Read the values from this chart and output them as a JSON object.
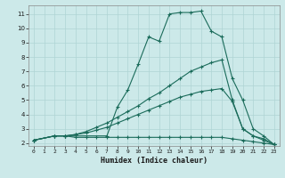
{
  "xlabel": "Humidex (Indice chaleur)",
  "bg_color": "#cce9e9",
  "grid_color": "#afd4d4",
  "line_color": "#1a6b5a",
  "xlim": [
    -0.5,
    23.5
  ],
  "ylim": [
    1.8,
    11.6
  ],
  "xticks": [
    0,
    1,
    2,
    3,
    4,
    5,
    6,
    7,
    8,
    9,
    10,
    11,
    12,
    13,
    14,
    15,
    16,
    17,
    18,
    19,
    20,
    21,
    22,
    23
  ],
  "yticks": [
    2,
    3,
    4,
    5,
    6,
    7,
    8,
    9,
    10,
    11
  ],
  "line1_flat": {
    "x": [
      0,
      2,
      3,
      4,
      5,
      6,
      7,
      8,
      9,
      10,
      11,
      12,
      13,
      14,
      15,
      16,
      17,
      18,
      19,
      20,
      21,
      22,
      23
    ],
    "y": [
      2.2,
      2.5,
      2.5,
      2.4,
      2.4,
      2.4,
      2.4,
      2.4,
      2.4,
      2.4,
      2.4,
      2.4,
      2.4,
      2.4,
      2.4,
      2.4,
      2.4,
      2.4,
      2.3,
      2.2,
      2.1,
      2.0,
      1.9
    ]
  },
  "line2_low": {
    "x": [
      0,
      2,
      3,
      4,
      5,
      6,
      7,
      8,
      9,
      10,
      11,
      12,
      13,
      14,
      15,
      16,
      17,
      18,
      19,
      20,
      21,
      22,
      23
    ],
    "y": [
      2.2,
      2.5,
      2.5,
      2.6,
      2.7,
      2.9,
      3.1,
      3.4,
      3.7,
      4.0,
      4.3,
      4.6,
      4.9,
      5.2,
      5.4,
      5.6,
      5.7,
      5.8,
      4.9,
      3.0,
      2.5,
      2.2,
      1.9
    ]
  },
  "line3_mid": {
    "x": [
      0,
      2,
      3,
      4,
      5,
      6,
      7,
      8,
      9,
      10,
      11,
      12,
      13,
      14,
      15,
      16,
      17,
      18,
      19,
      20,
      21,
      22,
      23
    ],
    "y": [
      2.2,
      2.5,
      2.5,
      2.6,
      2.8,
      3.1,
      3.4,
      3.8,
      4.2,
      4.6,
      5.1,
      5.5,
      6.0,
      6.5,
      7.0,
      7.3,
      7.6,
      7.8,
      5.0,
      3.0,
      2.5,
      2.3,
      1.9
    ]
  },
  "line4_peak": {
    "x": [
      0,
      2,
      3,
      7,
      8,
      9,
      10,
      11,
      12,
      13,
      14,
      15,
      16,
      17,
      18,
      19,
      20,
      21,
      22,
      23
    ],
    "y": [
      2.2,
      2.5,
      2.5,
      2.5,
      4.5,
      5.7,
      7.5,
      9.4,
      9.1,
      11.0,
      11.1,
      11.1,
      11.2,
      9.8,
      9.4,
      6.5,
      5.0,
      3.0,
      2.5,
      1.9
    ]
  }
}
